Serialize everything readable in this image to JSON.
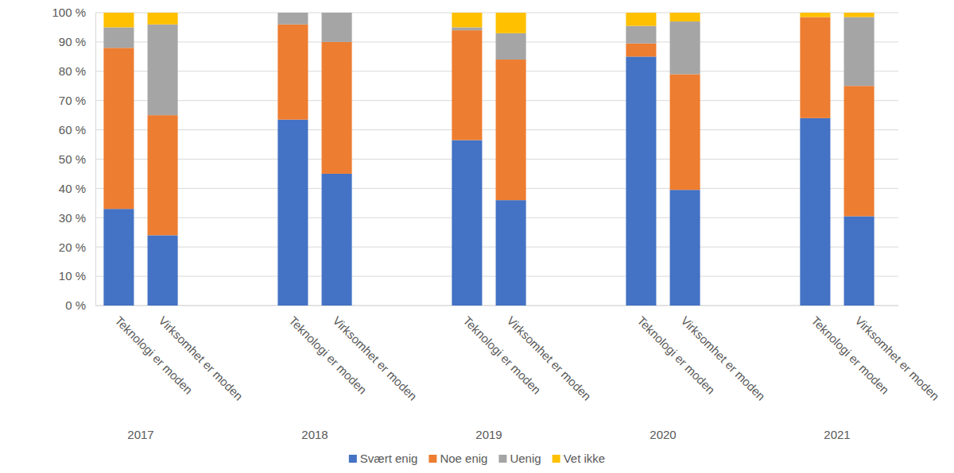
{
  "chart_data": {
    "type": "bar",
    "stacked": true,
    "grid": true,
    "legend": "bottom",
    "categories": [
      "Teknologi er moden",
      "Virksomhet er moden",
      "Teknologi er moden",
      "Virksomhet er moden",
      "Teknologi er moden",
      "Virksomhet er moden",
      "Teknologi er moden",
      "Virksomhet er moden",
      "Teknologi er moden",
      "Virksomhet er moden"
    ],
    "groups": [
      "2017",
      "2018",
      "2019",
      "2020",
      "2021"
    ],
    "ylim": [
      0,
      100
    ],
    "yticks": [
      {
        "value": 0,
        "label": "0 %"
      },
      {
        "value": 10,
        "label": "10 %"
      },
      {
        "value": 20,
        "label": "20 %"
      },
      {
        "value": 30,
        "label": "30 %"
      },
      {
        "value": 40,
        "label": "40 %"
      },
      {
        "value": 50,
        "label": "50 %"
      },
      {
        "value": 60,
        "label": "60 %"
      },
      {
        "value": 70,
        "label": "70 %"
      },
      {
        "value": 80,
        "label": "80 %"
      },
      {
        "value": 90,
        "label": "90 %"
      },
      {
        "value": 100,
        "label": "100 %"
      }
    ],
    "series": [
      {
        "name": "Svært enig",
        "color": "#4472c4",
        "values": [
          33,
          24,
          63.5,
          45,
          56.5,
          36,
          85,
          39.5,
          64,
          30.5
        ]
      },
      {
        "name": "Noe enig",
        "color": "#ed7d31",
        "values": [
          55,
          41,
          32.5,
          45,
          37.5,
          48,
          4.5,
          39.5,
          34.5,
          44.5
        ]
      },
      {
        "name": "Uenig",
        "color": "#a5a5a5",
        "values": [
          7,
          31,
          4,
          10,
          1,
          9,
          6,
          18,
          0,
          23.5
        ]
      },
      {
        "name": "Vet ikke",
        "color": "#ffc000",
        "values": [
          5,
          4,
          0,
          0,
          5,
          7,
          4.5,
          3,
          1.5,
          1.5
        ]
      }
    ]
  }
}
